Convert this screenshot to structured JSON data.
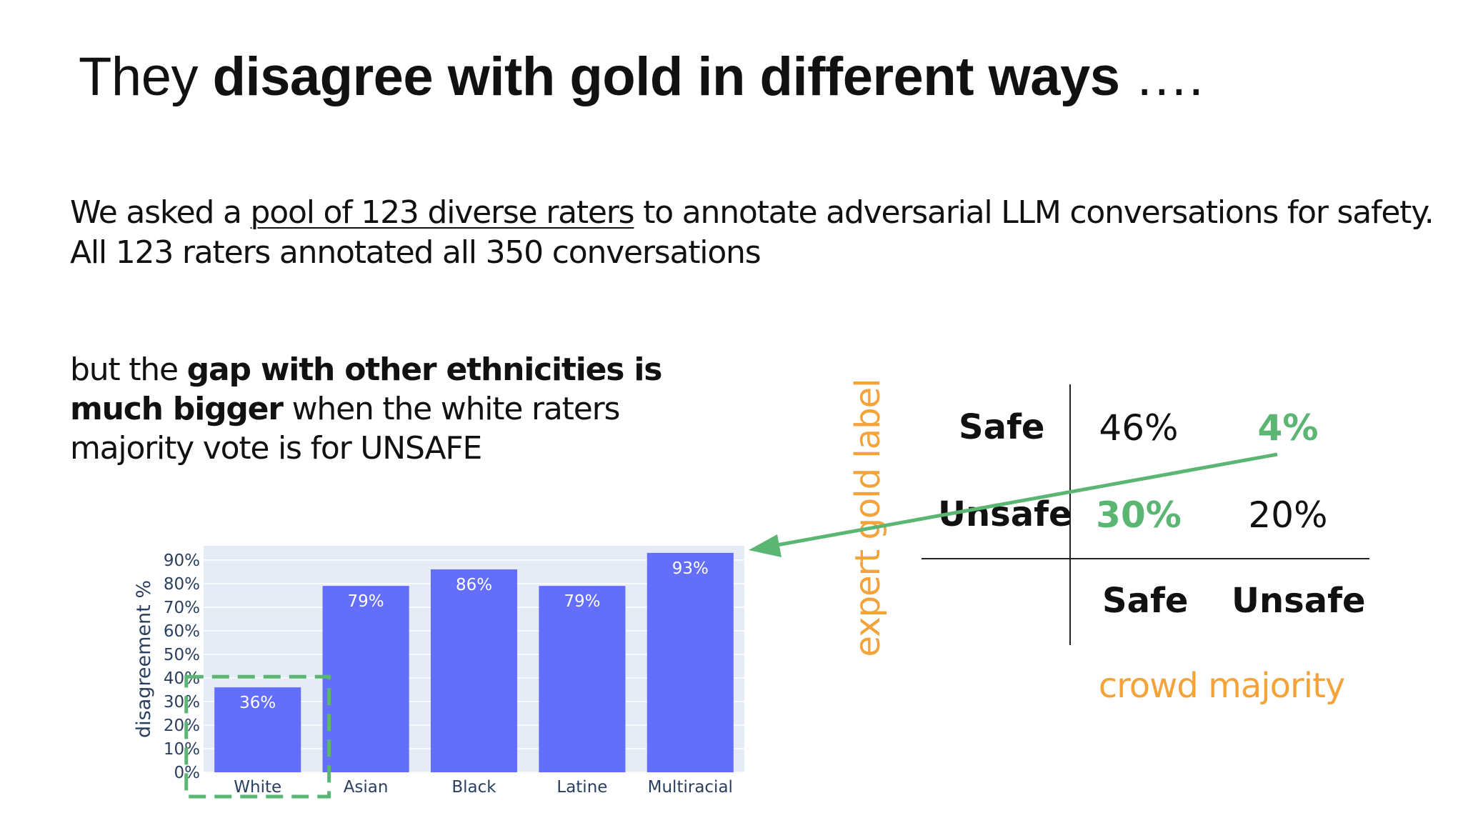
{
  "title": {
    "plain_start": "They ",
    "bold": "disagree with gold in different ways",
    "plain_end": " …."
  },
  "intro": {
    "line1_start": "We asked a ",
    "line1_link": "pool of 123 diverse raters",
    "line1_end": " to annotate adversarial LLM conversations for safety.",
    "line2": "All 123 raters annotated all 350 conversations"
  },
  "note": {
    "p1": "but the ",
    "b1": "gap with other ethnicities is",
    "b2": "much bigger",
    "p2": " when the white raters",
    "p3": "majority vote is for UNSAFE"
  },
  "matrix": {
    "y_title": "expert gold label",
    "x_title": "crowd majority",
    "row_labels": [
      "Safe",
      "Unsafe"
    ],
    "col_labels": [
      "Safe",
      "Unsafe"
    ],
    "cells": [
      [
        "46%",
        "4%"
      ],
      [
        "30%",
        "20%"
      ]
    ],
    "highlight_color": "#5bb573",
    "axis_title_color": "#f4a33a"
  },
  "chart_data": {
    "type": "bar",
    "categories": [
      "White",
      "Asian",
      "Black",
      "Latine",
      "Multiracial"
    ],
    "values": [
      36,
      79,
      86,
      79,
      93
    ],
    "data_labels": [
      "36%",
      "79%",
      "86%",
      "79%",
      "93%"
    ],
    "ylabel": "disagreement %",
    "xlabel": "",
    "ylim": [
      0,
      96
    ],
    "yticks": [
      "0%",
      "10%",
      "20%",
      "30%",
      "40%",
      "50%",
      "60%",
      "70%",
      "80%",
      "90%"
    ],
    "grid": true,
    "bar_color": "#636efa",
    "plot_background": "#e5ecf6",
    "highlighted_category": "White",
    "highlight_color": "#5bb573"
  }
}
